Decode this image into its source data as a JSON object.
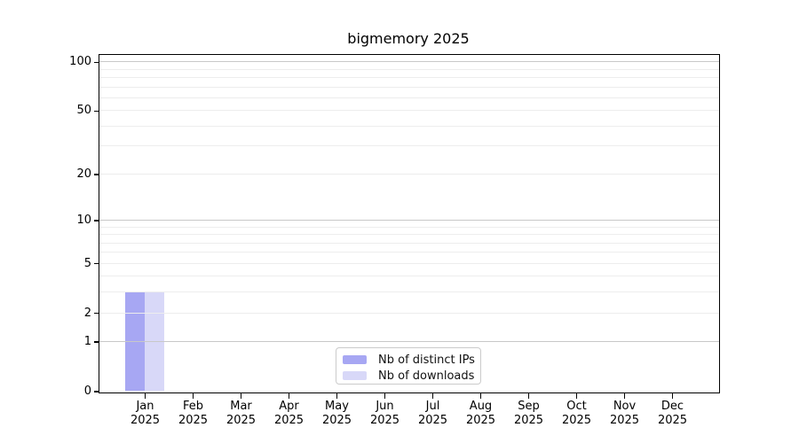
{
  "chart_data": {
    "type": "bar",
    "title": "bigmemory 2025",
    "categories": [
      "Jan",
      "Feb",
      "Mar",
      "Apr",
      "May",
      "Jun",
      "Jul",
      "Aug",
      "Sep",
      "Oct",
      "Nov",
      "Dec"
    ],
    "year_label": "2025",
    "series": [
      {
        "name": "Nb of distinct IPs",
        "color": "#a7a7f3",
        "values": [
          3,
          0,
          0,
          0,
          0,
          0,
          0,
          0,
          0,
          0,
          0,
          0
        ]
      },
      {
        "name": "Nb of downloads",
        "color": "#d8d8f8",
        "values": [
          3,
          0,
          0,
          0,
          0,
          0,
          0,
          0,
          0,
          0,
          0,
          0
        ]
      }
    ],
    "yscale": "log1p",
    "ylim": [
      0,
      111
    ],
    "ytick_values": [
      100,
      50,
      20,
      10,
      5,
      2,
      1,
      0
    ],
    "ytick_labels": [
      "100",
      "50",
      "20",
      "10",
      "5",
      "2",
      "1",
      "0"
    ],
    "grid_major_values": [
      1,
      10,
      100
    ],
    "grid_minor_values": [
      2,
      3,
      4,
      5,
      6,
      7,
      8,
      9,
      20,
      30,
      40,
      50,
      60,
      70,
      80,
      90
    ],
    "grid_color_major": "#c8c8c8",
    "grid_color_minor": "#ededed",
    "axis_color": "#000000",
    "legend": {
      "position": "lower center",
      "items": [
        {
          "label": "Nb of distinct IPs",
          "color": "#a7a7f3"
        },
        {
          "label": "Nb of downloads",
          "color": "#d8d8f8"
        }
      ]
    }
  }
}
